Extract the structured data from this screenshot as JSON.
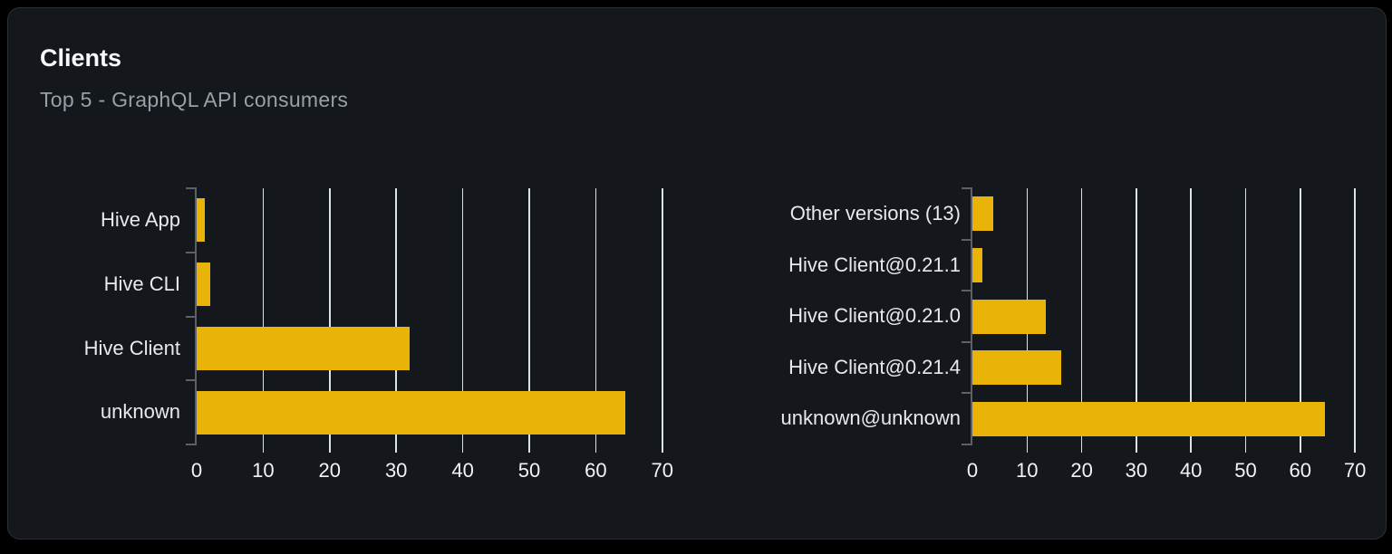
{
  "card": {
    "title": "Clients",
    "subtitle": "Top 5 - GraphQL API consumers"
  },
  "colors": {
    "page_background": "#000000",
    "card_background": "#14171c",
    "card_border": "#2c2f36",
    "bar": "#eab308",
    "axis": "#5d6167",
    "gridline": "#dde1e8",
    "title_text": "#f7f8f9",
    "subtitle_text": "#99a0a8",
    "category_text": "#e7e9ec",
    "tick_text": "#f2f3f5"
  },
  "chart_data": [
    {
      "type": "bar",
      "orientation": "horizontal",
      "title": "",
      "categories": [
        "Hive App",
        "Hive CLI",
        "Hive Client",
        "unknown"
      ],
      "values": [
        1.2,
        2,
        32,
        64.5
      ],
      "xlabel": "",
      "ylabel": "",
      "xlim": [
        0,
        70
      ],
      "xticks": [
        0,
        10,
        20,
        30,
        40,
        50,
        60,
        70
      ],
      "grid": "vertical",
      "legend": "none",
      "bar_color": "#eab308"
    },
    {
      "type": "bar",
      "orientation": "horizontal",
      "title": "",
      "categories": [
        "Other versions (13)",
        "Hive Client@0.21.1",
        "Hive Client@0.21.0",
        "Hive Client@0.21.4",
        "unknown@unknown"
      ],
      "values": [
        3.8,
        1.8,
        13.4,
        16.3,
        64.5
      ],
      "xlabel": "",
      "ylabel": "",
      "xlim": [
        0,
        70
      ],
      "xticks": [
        0,
        10,
        20,
        30,
        40,
        50,
        60,
        70
      ],
      "grid": "vertical",
      "legend": "none",
      "bar_color": "#eab308"
    }
  ]
}
